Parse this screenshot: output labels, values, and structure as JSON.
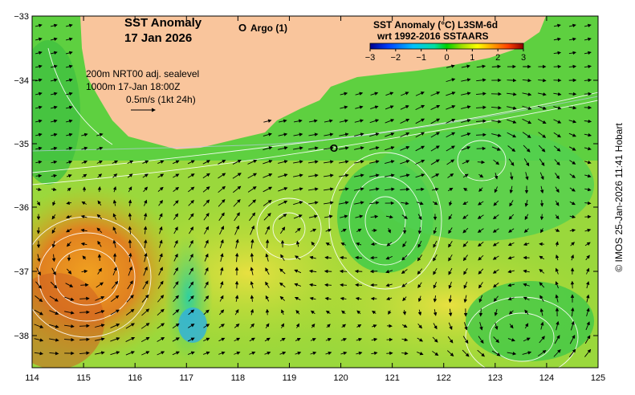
{
  "title": {
    "line1": "SST Anomaly",
    "line2": "17 Jan 2026"
  },
  "argo": {
    "label": "Argo (1)",
    "symbol": "O"
  },
  "legend": {
    "title": "SST Anomaly (°C) L3SM-6d",
    "subtitle": "wrt 1992-2016 SSTAARS",
    "ticks": [
      "−3",
      "−2",
      "−1",
      "0",
      "1",
      "2",
      "3"
    ]
  },
  "annotations": {
    "line1": "200m  NRT00 adj. sealevel",
    "line2": "1000m 17-Jan 18:00Z",
    "line3": "0.5m/s (1kt 24h)"
  },
  "axes": {
    "lon_ticks": [
      "114",
      "115",
      "116",
      "117",
      "118",
      "119",
      "120",
      "121",
      "122",
      "123",
      "124",
      "125"
    ],
    "lat_ticks": [
      "−33",
      "−34",
      "−35",
      "−36",
      "−37",
      "−38"
    ]
  },
  "copyright": "© IMOS 25-Jan-2026 11:41 Hobart",
  "colors": {
    "land": "#f9c59c",
    "colormap": [
      "#00008c",
      "#0040ff",
      "#00c0ff",
      "#00e0a0",
      "#00d000",
      "#a0e000",
      "#ffff00",
      "#ffa000",
      "#ff4000",
      "#8c0000"
    ]
  }
}
